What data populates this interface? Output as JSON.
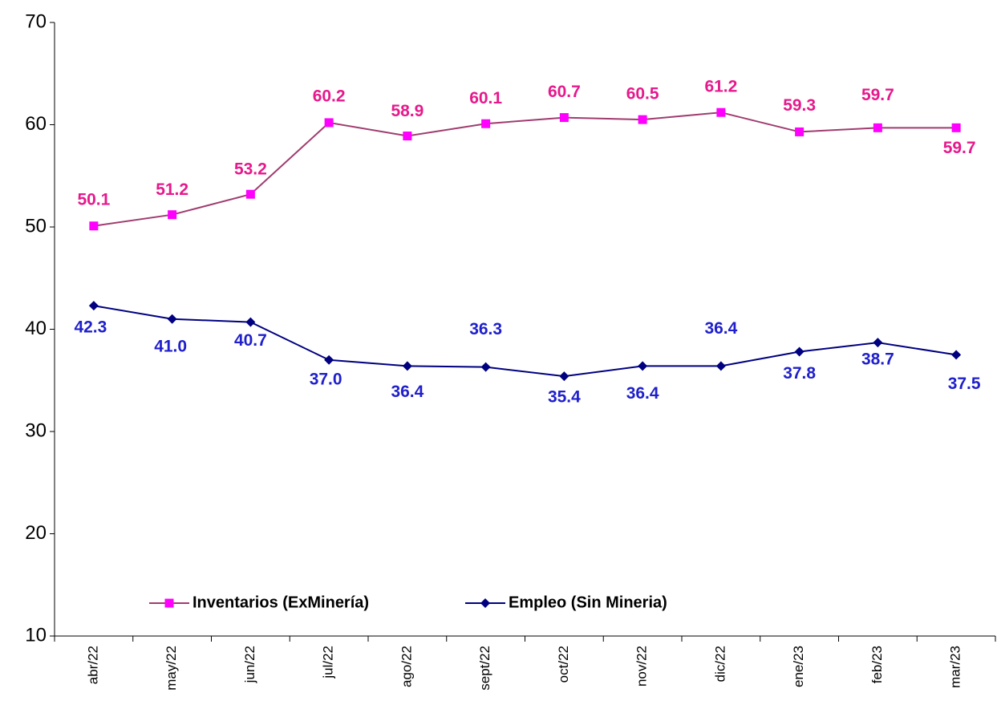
{
  "chart_data": {
    "type": "line",
    "categories": [
      "abr/22",
      "may/22",
      "jun/22",
      "jul/22",
      "ago/22",
      "sept/22",
      "oct/22",
      "nov/22",
      "dic/22",
      "ene/23",
      "feb/23",
      "mar/23"
    ],
    "series": [
      {
        "name": "Inventarios (ExMinería)",
        "color": "#a03c6e",
        "marker_color": "#ff00ff",
        "label_color": "#e6198c",
        "values": [
          50.1,
          51.2,
          53.2,
          60.2,
          58.9,
          60.1,
          60.7,
          60.5,
          61.2,
          59.3,
          59.7,
          59.7
        ],
        "value_labels": [
          "50.1",
          "51.2",
          "53.2",
          "60.2",
          "58.9",
          "60.1",
          "60.7",
          "60.5",
          "61.2",
          "59.3",
          "59.7",
          "59.7"
        ]
      },
      {
        "name": "Empleo (Sin Mineria)",
        "color": "#000080",
        "marker_color": "#000080",
        "label_color": "#1f1fcc",
        "values": [
          42.3,
          41.0,
          40.7,
          37.0,
          36.4,
          36.3,
          35.4,
          36.4,
          36.4,
          37.8,
          38.7,
          37.5
        ],
        "value_labels": [
          "42.3",
          "41.0",
          "40.7",
          "37.0",
          "36.4",
          "36.3",
          "35.4",
          "36.4",
          "36.4",
          "37.8",
          "38.7",
          "37.5"
        ]
      }
    ],
    "ylim": [
      10,
      70
    ],
    "yticks": [
      10,
      20,
      30,
      40,
      50,
      60,
      70
    ],
    "grid": false
  }
}
